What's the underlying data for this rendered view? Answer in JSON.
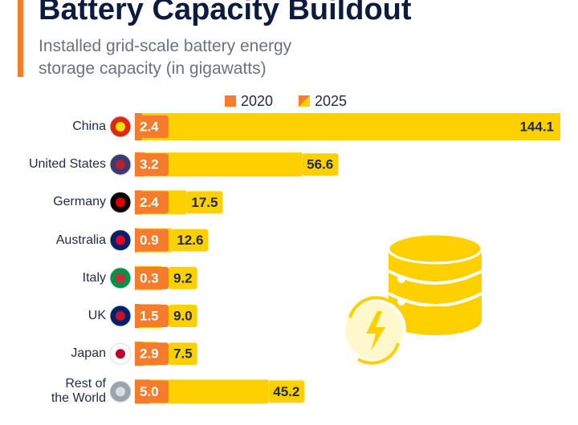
{
  "chart_data": {
    "type": "bar",
    "title": "Battery Capacity Buildout",
    "subtitle": "Installed grid-scale battery energy storage capacity (in gigawatts)",
    "categories": [
      "China",
      "United States",
      "Germany",
      "Australia",
      "Italy",
      "UK",
      "Japan",
      "Rest of the World"
    ],
    "series": [
      {
        "name": "2020",
        "color": "#f47c2c",
        "values": [
          2.4,
          3.2,
          2.4,
          0.9,
          0.3,
          1.5,
          2.9,
          5.0
        ],
        "value_labels": [
          "2.4",
          "3.2",
          "2.4",
          "0.9",
          "0.3",
          "1.5",
          "2.9",
          "5.0"
        ]
      },
      {
        "name": "2025",
        "color": "#ffd000",
        "values": [
          144.1,
          56.6,
          17.5,
          12.6,
          9.2,
          9.0,
          7.5,
          45.2
        ],
        "value_labels": [
          "144.1",
          "56.6",
          "17.5",
          "12.6",
          "9.2",
          "9.0",
          "7.5",
          "45.2"
        ]
      }
    ],
    "xlim": [
      0,
      144.1
    ]
  }
}
